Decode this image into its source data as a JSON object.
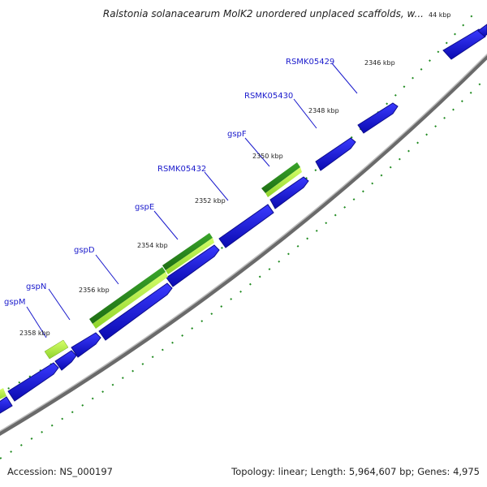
{
  "header": {
    "title": "Ralstonia solanacearum MolK2 unordered unplaced scaffolds, w..."
  },
  "footer": {
    "accession": "Accession: NS_000197",
    "summary": "Topology: linear; Length: 5,964,607 bp; Genes: 4,975"
  },
  "ticks": [
    {
      "label": "44 kbp"
    },
    {
      "label": "2346 kbp"
    },
    {
      "label": "2348 kbp"
    },
    {
      "label": "2350 kbp"
    },
    {
      "label": "2352 kbp"
    },
    {
      "label": "2354 kbp"
    },
    {
      "label": "2356 kbp"
    },
    {
      "label": "2358 kbp"
    }
  ],
  "gene_labels": [
    {
      "name": "RSMK05429"
    },
    {
      "name": "RSMK05430"
    },
    {
      "name": "gspF"
    },
    {
      "name": "RSMK05432"
    },
    {
      "name": "gspE"
    },
    {
      "name": "gspD"
    },
    {
      "name": "gspN"
    },
    {
      "name": "gspM"
    }
  ],
  "colors": {
    "gene_blue": "#1a1ae6",
    "gene_blue_dark": "#0c0c8c",
    "feature_green": "#2e8b1e",
    "feature_light_green": "#b8f03c",
    "backbone": "#8c8c8c",
    "dots": "#1f8a1f",
    "label": "#1a1acc"
  }
}
